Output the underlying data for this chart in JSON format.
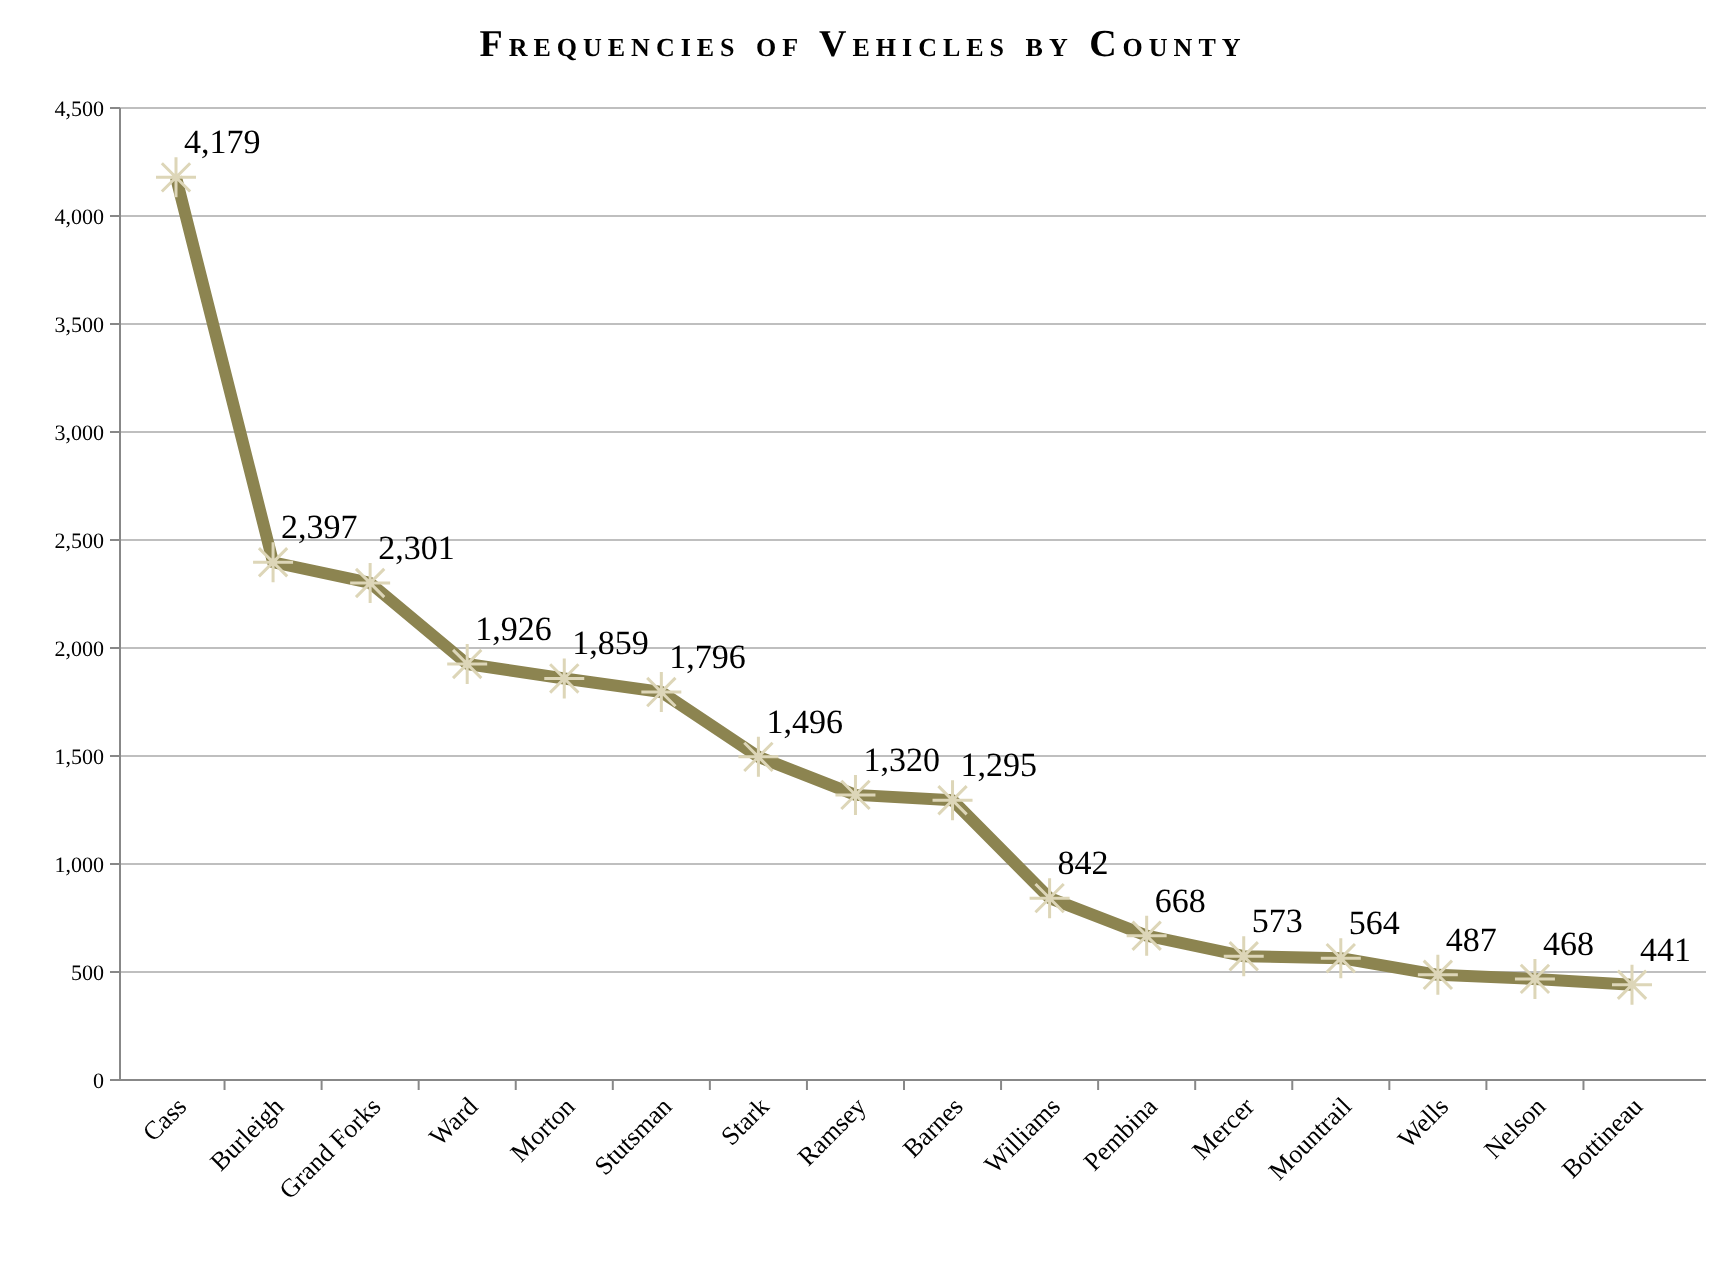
{
  "chart_data": {
    "type": "line",
    "title": "Frequencies of Vehicles by County",
    "categories": [
      "Cass",
      "Burleigh",
      "Grand Forks",
      "Ward",
      "Morton",
      "Stutsman",
      "Stark",
      "Ramsey",
      "Barnes",
      "Williams",
      "Pembina",
      "Mercer",
      "Mountrail",
      "Wells",
      "Nelson",
      "Bottineau"
    ],
    "series": [
      {
        "color": "#8c8450",
        "values": [
          4179,
          2397,
          2301,
          1926,
          1859,
          1796,
          1496,
          1320,
          1295,
          842,
          668,
          573,
          564,
          487,
          468,
          441
        ]
      }
    ],
    "ylim": [
      0,
      4500
    ],
    "yticks": [
      {
        "value": 0,
        "label": "0"
      },
      {
        "value": 500,
        "label": "500"
      },
      {
        "value": 1000,
        "label": "1,000"
      },
      {
        "value": 1500,
        "label": "1,500"
      },
      {
        "value": 2000,
        "label": "2,000"
      },
      {
        "value": 2500,
        "label": "2,500"
      },
      {
        "value": 3000,
        "label": "3,000"
      },
      {
        "value": 3500,
        "label": "3,500"
      },
      {
        "value": 4000,
        "label": "4,000"
      },
      {
        "value": 4500,
        "label": "4,500"
      }
    ],
    "value_labels": [
      "4,179",
      "2,397",
      "2,301",
      "1,926",
      "1,859",
      "1,796",
      "1,496",
      "1,320",
      "1,295",
      "842",
      "668",
      "573",
      "564",
      "487",
      "468",
      "441"
    ],
    "grid": "y",
    "marker": "cross",
    "line_style": "solid"
  }
}
